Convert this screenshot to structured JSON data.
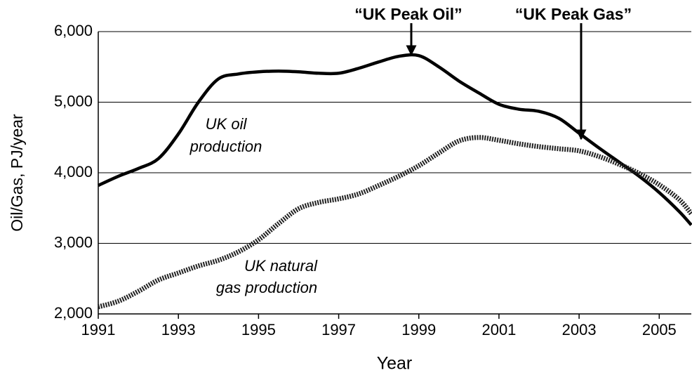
{
  "chart_data": {
    "type": "line",
    "x_label": "Year",
    "y_label": "Oil/Gas, PJ/year",
    "x": [
      1991,
      1991.5,
      1992,
      1992.5,
      1993,
      1993.5,
      1994,
      1994.5,
      1995,
      1995.5,
      1996,
      1996.5,
      1997,
      1997.5,
      1998,
      1998.5,
      1999,
      1999.5,
      2000,
      2000.5,
      2001,
      2001.5,
      2002,
      2002.5,
      2003,
      2003.5,
      2004,
      2004.5,
      2005,
      2005.5,
      2005.8
    ],
    "series": [
      {
        "name": "UK oil production",
        "color": "#000000",
        "style": "solid",
        "values": [
          3820,
          3950,
          4060,
          4200,
          4550,
          5000,
          5330,
          5400,
          5430,
          5440,
          5430,
          5410,
          5410,
          5480,
          5570,
          5650,
          5660,
          5500,
          5300,
          5130,
          4970,
          4900,
          4870,
          4770,
          4560,
          4350,
          4150,
          3950,
          3720,
          3450,
          3260
        ]
      },
      {
        "name": "UK natural gas production",
        "color": "#222222",
        "style": "dotted",
        "values": [
          2100,
          2180,
          2320,
          2480,
          2580,
          2680,
          2760,
          2880,
          3050,
          3280,
          3490,
          3580,
          3630,
          3700,
          3820,
          3950,
          4100,
          4280,
          4450,
          4500,
          4460,
          4410,
          4370,
          4340,
          4310,
          4230,
          4120,
          3990,
          3830,
          3620,
          3420
        ]
      }
    ],
    "annotations": [
      {
        "lines": [
          "UK oil",
          "production"
        ]
      },
      {
        "lines": [
          "UK natural",
          "gas production"
        ]
      },
      {
        "lines": [
          "“UK Peak Oil”"
        ]
      },
      {
        "lines": [
          "“UK Peak Gas”"
        ]
      }
    ],
    "xlim": [
      1991,
      2005.8
    ],
    "xticks": [
      1991,
      1993,
      1995,
      1997,
      1999,
      2001,
      2003,
      2005
    ],
    "ylim": [
      2000,
      6000
    ],
    "yticks": [
      {
        "value": 2000,
        "label": "2,000"
      },
      {
        "value": 3000,
        "label": "3,000"
      },
      {
        "value": 4000,
        "label": "4,000"
      },
      {
        "value": 5000,
        "label": "5,000"
      },
      {
        "value": 6000,
        "label": "6,000"
      }
    ],
    "grid": true
  }
}
